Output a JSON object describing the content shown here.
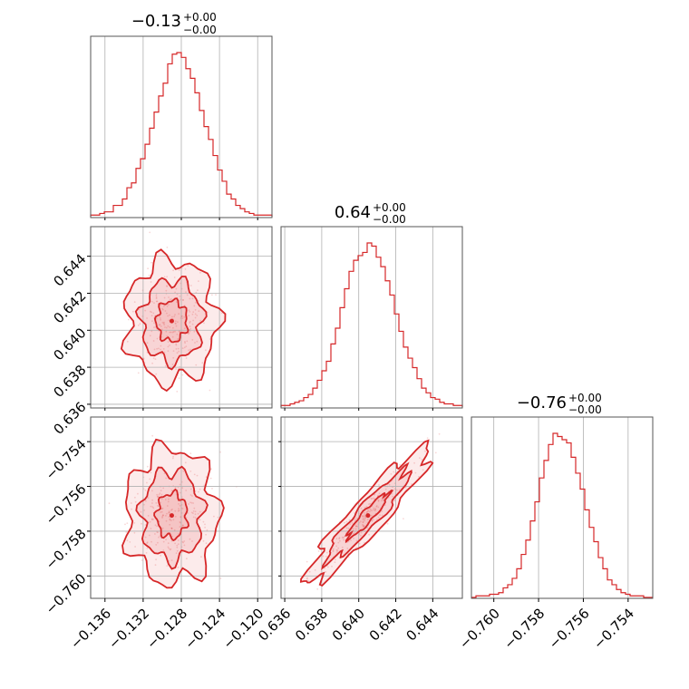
{
  "chart_data": {
    "type": "corner",
    "colors": {
      "main": "#d62728",
      "fill": "#f3b6b7",
      "grid": "#b0b0b0"
    },
    "parameters": [
      {
        "title_value": "−0.13",
        "title_upper": "+0.00",
        "title_lower": "−0.00",
        "range": [
          -0.1375,
          -0.1185
        ],
        "ticks": [
          -0.136,
          -0.132,
          -0.128,
          -0.124,
          -0.12
        ],
        "tick_labels": [
          "−0.136",
          "−0.132",
          "−0.128",
          "−0.124",
          "−0.120"
        ],
        "mean": -0.129,
        "sd": 0.0016
      },
      {
        "title_value": "0.64",
        "title_upper": "+0.00",
        "title_lower": "−0.00",
        "range": [
          0.6358,
          0.6456
        ],
        "ticks": [
          0.636,
          0.638,
          0.64,
          0.642,
          0.644
        ],
        "tick_labels": [
          "0.636",
          "0.638",
          "0.640",
          "0.642",
          "0.644"
        ],
        "mean": 0.6405,
        "sd": 0.0011
      },
      {
        "title_value": "−0.76",
        "title_upper": "+0.00",
        "title_lower": "−0.00",
        "range": [
          -0.761,
          -0.7529
        ],
        "ticks": [
          -0.76,
          -0.758,
          -0.756,
          -0.754
        ],
        "tick_labels": [
          "−0.760",
          "−0.758",
          "−0.756",
          "−0.754"
        ],
        "mean": -0.7573,
        "sd": 0.001
      }
    ],
    "histograms": [
      {
        "param": 0,
        "bin_range": [
          -0.1375,
          -0.1185
        ],
        "counts": [
          1,
          1,
          2,
          3,
          3,
          7,
          7,
          11,
          18,
          21,
          30,
          36,
          45,
          55,
          65,
          75,
          83,
          95,
          101,
          102,
          99,
          92,
          86,
          77,
          66,
          56,
          48,
          38,
          29,
          22,
          14,
          11,
          7,
          5,
          3,
          2,
          1,
          1,
          1,
          1
        ]
      },
      {
        "param": 1,
        "bin_range": [
          0.6358,
          0.6456
        ],
        "counts": [
          1,
          1,
          2,
          3,
          4,
          6,
          8,
          12,
          17,
          23,
          29,
          40,
          50,
          63,
          75,
          86,
          93,
          96,
          98,
          104,
          102,
          95,
          89,
          80,
          71,
          59,
          48,
          38,
          31,
          25,
          18,
          12,
          9,
          6,
          5,
          3,
          2,
          2,
          1,
          1
        ]
      },
      {
        "param": 2,
        "bin_range": [
          -0.761,
          -0.7529
        ],
        "counts": [
          0,
          1,
          1,
          1,
          2,
          2,
          3,
          6,
          8,
          12,
          18,
          27,
          36,
          48,
          60,
          75,
          86,
          96,
          103,
          101,
          99,
          97,
          88,
          78,
          68,
          55,
          44,
          35,
          25,
          18,
          11,
          8,
          5,
          3,
          2,
          1,
          1,
          1,
          0,
          0
        ]
      }
    ],
    "pairs": [
      {
        "x": 0,
        "y": 1,
        "correlation": 0.0,
        "contour_levels": [
          0.393,
          0.865,
          0.989
        ]
      },
      {
        "x": 0,
        "y": 2,
        "correlation": 0.0,
        "contour_levels": [
          0.393,
          0.865,
          0.989
        ]
      },
      {
        "x": 1,
        "y": 2,
        "correlation": 0.93,
        "contour_levels": [
          0.393,
          0.865,
          0.989
        ]
      }
    ]
  }
}
